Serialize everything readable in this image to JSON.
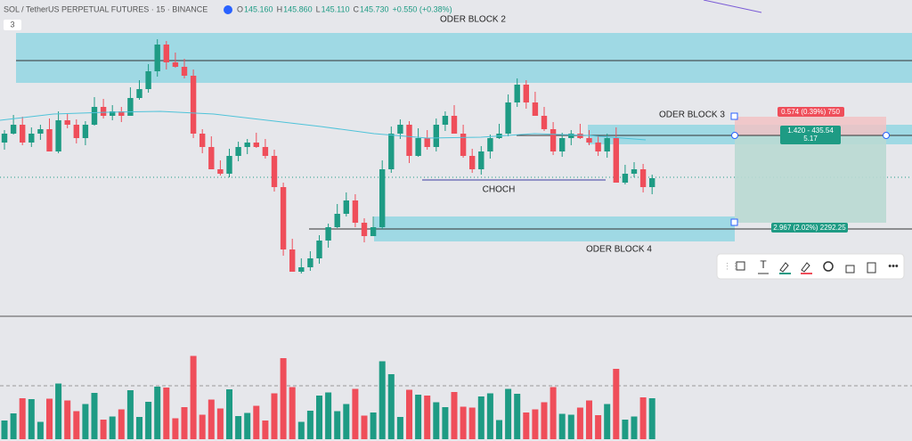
{
  "header": {
    "symbol": "SOL / TetherUS PERPETUAL FUTURES · 15 · BINANCE",
    "ohlc": [
      {
        "key": "O",
        "value": "145.160"
      },
      {
        "key": "H",
        "value": "145.860"
      },
      {
        "key": "L",
        "value": "145.110"
      },
      {
        "key": "C",
        "value": "145.730"
      }
    ],
    "change": "+0.550 (+0.38%)",
    "collapse": "3"
  },
  "labels": {
    "block2": "ODER BLOCK 2",
    "block3": "ODER BLOCK 3",
    "choch": "CHOCH",
    "block4": "ODER BLOCK 4"
  },
  "position": {
    "target": "0.574 (0.39%) 750",
    "center_line1": "1.420 - 435.54",
    "center_line2": "5.17",
    "stop": "2.967 (2.02%) 2292.25"
  },
  "toolbar": {
    "text_tool": "T"
  }
}
